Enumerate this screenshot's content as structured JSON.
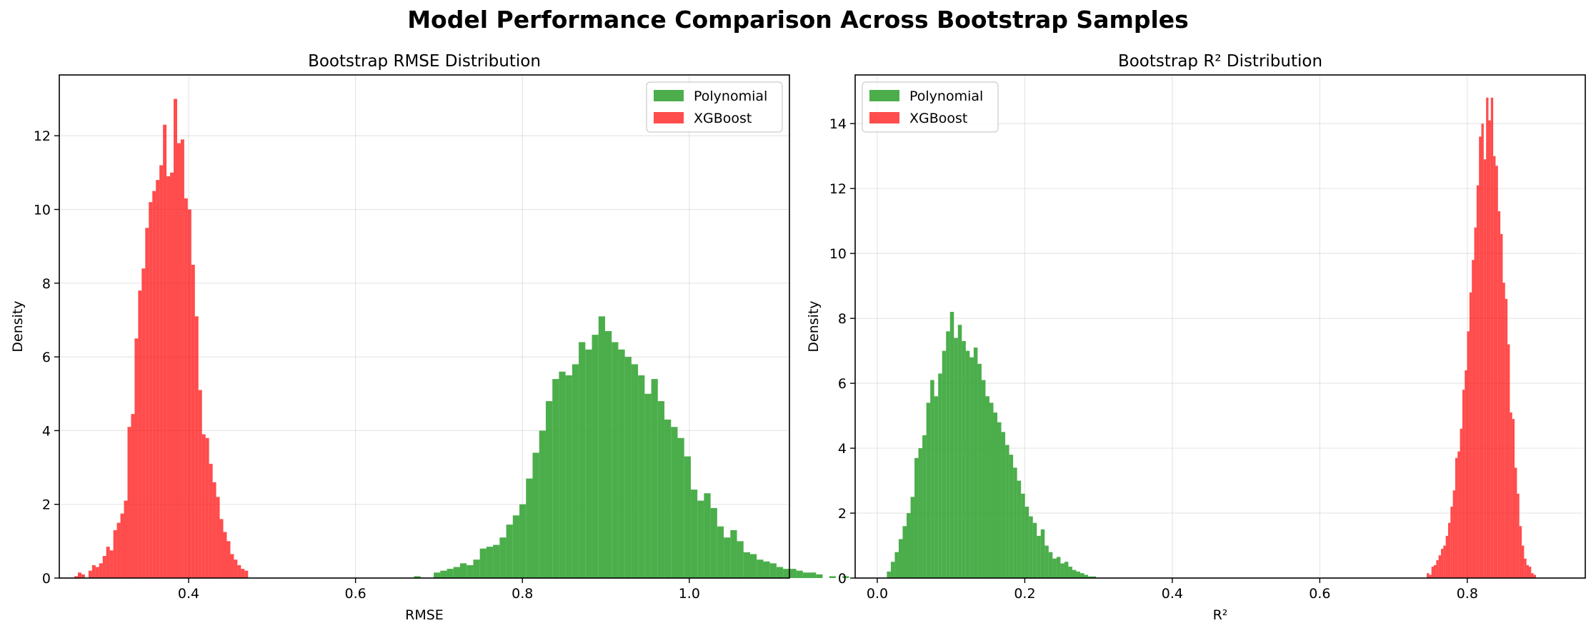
{
  "figure": {
    "title": "Model Performance Comparison Across Bootstrap Samples"
  },
  "chart_data": [
    {
      "type": "histogram",
      "title": "Bootstrap RMSE Distribution",
      "xlabel": "RMSE",
      "ylabel": "Density",
      "xlim": [
        0.245,
        1.12
      ],
      "ylim": [
        0,
        13.65
      ],
      "xticks": [
        0.4,
        0.6,
        0.8,
        1.0
      ],
      "xtick_labels": [
        "0.4",
        "0.6",
        "0.8",
        "1.0"
      ],
      "yticks": [
        0,
        2,
        4,
        6,
        8,
        10,
        12
      ],
      "ytick_labels": [
        "0",
        "2",
        "4",
        "6",
        "8",
        "10",
        "12"
      ],
      "grid": true,
      "legend_position": "top-right",
      "series": [
        {
          "name": "Polynomial",
          "color": "#2ca02c",
          "opacity": 0.85,
          "bin_start": 0.67,
          "bin_width": 0.0079,
          "values": [
            0.05,
            0.0,
            0.0,
            0.15,
            0.2,
            0.25,
            0.3,
            0.4,
            0.35,
            0.5,
            0.8,
            0.85,
            0.9,
            1.1,
            1.45,
            1.7,
            2.0,
            2.7,
            3.4,
            4.0,
            4.8,
            5.4,
            5.6,
            5.5,
            5.8,
            6.4,
            6.2,
            6.6,
            7.1,
            6.7,
            6.4,
            6.2,
            6.0,
            5.8,
            5.5,
            5.0,
            5.4,
            4.8,
            4.3,
            4.1,
            3.8,
            3.3,
            2.4,
            2.1,
            2.3,
            1.9,
            1.4,
            1.1,
            1.3,
            1.0,
            0.7,
            0.65,
            0.5,
            0.45,
            0.4,
            0.3,
            0.25,
            0.25,
            0.2,
            0.15,
            0.15,
            0.1,
            0.0,
            0.05,
            0.0,
            0.05
          ]
        },
        {
          "name": "XGBoost",
          "color": "#ff0000",
          "opacity": 0.7,
          "bin_start": 0.263,
          "bin_width": 0.00425,
          "values": [
            0.05,
            0.15,
            0.1,
            0.0,
            0.2,
            0.35,
            0.3,
            0.4,
            0.6,
            0.85,
            0.75,
            1.3,
            1.5,
            1.75,
            2.1,
            4.1,
            4.45,
            6.5,
            7.8,
            8.4,
            9.5,
            10.2,
            10.5,
            10.8,
            11.2,
            12.3,
            10.9,
            11.0,
            13.0,
            11.8,
            11.9,
            10.3,
            10.0,
            8.5,
            7.1,
            5.1,
            3.9,
            3.8,
            3.1,
            2.6,
            2.2,
            1.6,
            1.25,
            1.0,
            0.65,
            0.5,
            0.35,
            0.25,
            0.2
          ]
        }
      ]
    },
    {
      "type": "histogram",
      "title": "Bootstrap R² Distribution",
      "xlabel": "R²",
      "ylabel": "Density",
      "xlim": [
        -0.03,
        0.96
      ],
      "ylim": [
        0,
        15.5
      ],
      "xticks": [
        0.0,
        0.2,
        0.4,
        0.6,
        0.8
      ],
      "xtick_labels": [
        "0.0",
        "0.2",
        "0.4",
        "0.6",
        "0.8"
      ],
      "yticks": [
        0,
        2,
        4,
        6,
        8,
        10,
        12,
        14
      ],
      "ytick_labels": [
        "0",
        "2",
        "4",
        "6",
        "8",
        "10",
        "12",
        "14"
      ],
      "grid": true,
      "legend_position": "top-left",
      "series": [
        {
          "name": "Polynomial",
          "color": "#2ca02c",
          "opacity": 0.85,
          "bin_start": 0.013,
          "bin_width": 0.00535,
          "values": [
            0.2,
            0.5,
            0.8,
            1.2,
            1.6,
            2.0,
            2.5,
            3.7,
            4.0,
            4.4,
            5.4,
            6.1,
            5.6,
            6.3,
            7.0,
            7.6,
            8.2,
            7.4,
            7.8,
            7.3,
            7.0,
            6.8,
            7.1,
            6.6,
            6.1,
            5.6,
            5.4,
            5.1,
            4.8,
            4.5,
            4.1,
            3.8,
            3.4,
            3.0,
            2.6,
            2.2,
            1.9,
            1.7,
            1.3,
            1.5,
            1.0,
            0.8,
            0.6,
            0.65,
            0.45,
            0.5,
            0.35,
            0.25,
            0.2,
            0.15,
            0.1,
            0.05,
            0.05
          ]
        },
        {
          "name": "XGBoost",
          "color": "#ff0000",
          "opacity": 0.7,
          "bin_start": 0.745,
          "bin_width": 0.00322,
          "values": [
            0.15,
            0.1,
            0.35,
            0.4,
            0.55,
            0.7,
            0.9,
            1.0,
            1.3,
            1.7,
            2.2,
            2.7,
            3.7,
            3.9,
            4.6,
            5.8,
            6.4,
            7.6,
            8.8,
            9.8,
            10.8,
            12.1,
            13.6,
            14.0,
            12.9,
            14.8,
            14.1,
            14.8,
            13.0,
            12.7,
            11.3,
            10.6,
            9.1,
            8.6,
            7.2,
            5.1,
            4.9,
            3.4,
            2.6,
            1.6,
            1.0,
            0.6,
            0.4,
            0.35,
            0.15,
            0.1
          ]
        }
      ]
    }
  ]
}
